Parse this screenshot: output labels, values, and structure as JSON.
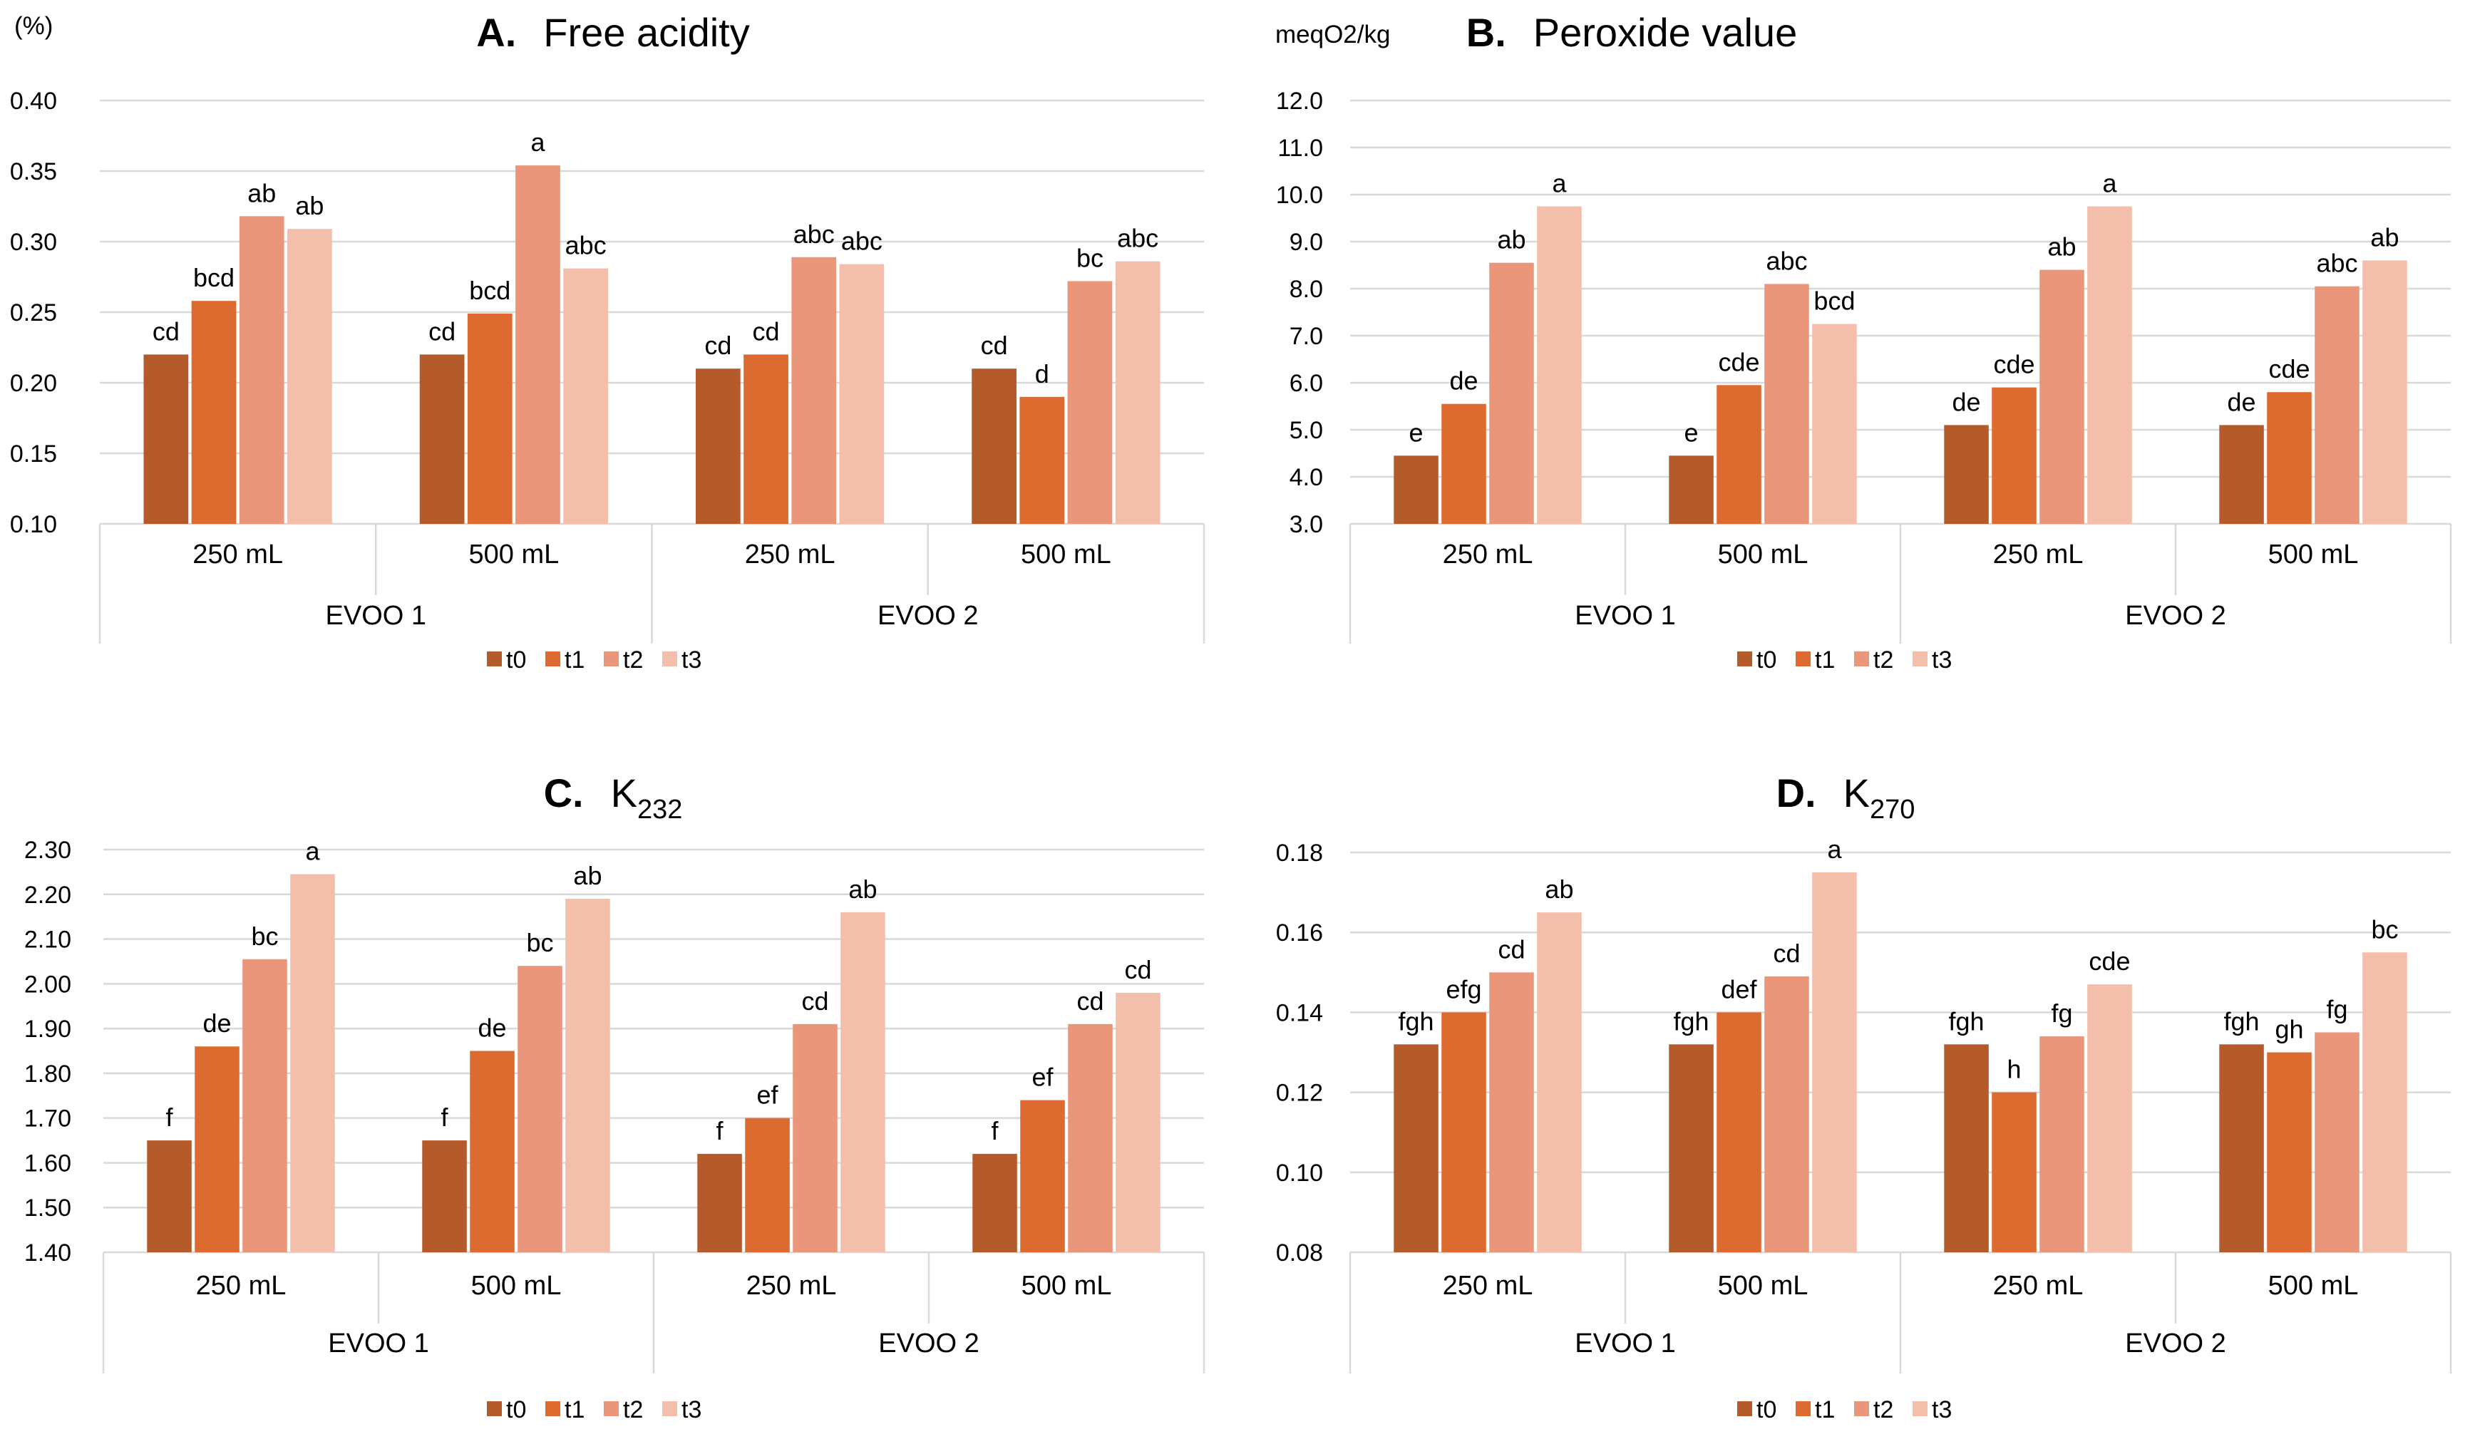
{
  "colors": {
    "t0": "#b55a2a",
    "t1": "#dd6a2e",
    "t2": "#e9967a",
    "t3": "#f3bfaa"
  },
  "chart_data": [
    {
      "type": "bar",
      "panel_label": "A.",
      "title": "Free acidity",
      "title_sub": "",
      "unit_label": "(%)",
      "groups": [
        "EVOO 1",
        "EVOO 2"
      ],
      "categories": [
        "250 mL",
        "500 mL",
        "250 mL",
        "500 mL"
      ],
      "ylim": [
        0.1,
        0.4
      ],
      "yticks": [
        "0.10",
        "0.15",
        "0.20",
        "0.25",
        "0.30",
        "0.35",
        "0.40"
      ],
      "legend_position": "bottom",
      "series": [
        {
          "name": "t0",
          "values": [
            0.22,
            0.22,
            0.21,
            0.21
          ],
          "labels": [
            "cd",
            "cd",
            "cd",
            "cd"
          ]
        },
        {
          "name": "t1",
          "values": [
            0.258,
            0.249,
            0.22,
            0.19
          ],
          "labels": [
            "bcd",
            "bcd",
            "cd",
            "d"
          ]
        },
        {
          "name": "t2",
          "values": [
            0.318,
            0.354,
            0.289,
            0.272
          ],
          "labels": [
            "ab",
            "a",
            "abc",
            "bc"
          ]
        },
        {
          "name": "t3",
          "values": [
            0.309,
            0.281,
            0.284,
            0.286
          ],
          "labels": [
            "ab",
            "abc",
            "abc",
            "abc"
          ]
        }
      ]
    },
    {
      "type": "bar",
      "panel_label": "B.",
      "title": "Peroxide value",
      "title_sub": "",
      "unit_label": "meqO2/kg",
      "groups": [
        "EVOO 1",
        "EVOO 2"
      ],
      "categories": [
        "250 mL",
        "500 mL",
        "250 mL",
        "500 mL"
      ],
      "ylim": [
        3.0,
        12.0
      ],
      "yticks": [
        "3.0",
        "4.0",
        "5.0",
        "6.0",
        "7.0",
        "8.0",
        "9.0",
        "10.0",
        "11.0",
        "12.0"
      ],
      "legend_position": "bottom",
      "series": [
        {
          "name": "t0",
          "values": [
            4.45,
            4.45,
            5.1,
            5.1
          ],
          "labels": [
            "e",
            "e",
            "de",
            "de"
          ]
        },
        {
          "name": "t1",
          "values": [
            5.55,
            5.95,
            5.9,
            5.8
          ],
          "labels": [
            "de",
            "cde",
            "cde",
            "cde"
          ]
        },
        {
          "name": "t2",
          "values": [
            8.55,
            8.1,
            8.4,
            8.05
          ],
          "labels": [
            "ab",
            "abc",
            "ab",
            "abc"
          ]
        },
        {
          "name": "t3",
          "values": [
            9.75,
            7.25,
            9.75,
            8.6
          ],
          "labels": [
            "a",
            "bcd",
            "a",
            "ab"
          ]
        }
      ]
    },
    {
      "type": "bar",
      "panel_label": "C.",
      "title": "K",
      "title_sub": "232",
      "unit_label": "",
      "groups": [
        "EVOO 1",
        "EVOO 2"
      ],
      "categories": [
        "250 mL",
        "500 mL",
        "250 mL",
        "500 mL"
      ],
      "ylim": [
        1.4,
        2.3
      ],
      "yticks": [
        "1.40",
        "1.50",
        "1.60",
        "1.70",
        "1.80",
        "1.90",
        "2.00",
        "2.10",
        "2.20",
        "2.30"
      ],
      "legend_position": "bottom",
      "series": [
        {
          "name": "t0",
          "values": [
            1.65,
            1.65,
            1.62,
            1.62
          ],
          "labels": [
            "f",
            "f",
            "f",
            "f"
          ]
        },
        {
          "name": "t1",
          "values": [
            1.86,
            1.85,
            1.7,
            1.74
          ],
          "labels": [
            "de",
            "de",
            "ef",
            "ef"
          ]
        },
        {
          "name": "t2",
          "values": [
            2.055,
            2.04,
            1.91,
            1.91
          ],
          "labels": [
            "bc",
            "bc",
            "cd",
            "cd"
          ]
        },
        {
          "name": "t3",
          "values": [
            2.245,
            2.19,
            2.16,
            1.98
          ],
          "labels": [
            "a",
            "ab",
            "ab",
            "cd"
          ]
        }
      ]
    },
    {
      "type": "bar",
      "panel_label": "D.",
      "title": "K",
      "title_sub": "270",
      "unit_label": "",
      "groups": [
        "EVOO 1",
        "EVOO 2"
      ],
      "categories": [
        "250 mL",
        "500 mL",
        "250 mL",
        "500 mL"
      ],
      "ylim": [
        0.08,
        0.18
      ],
      "yticks": [
        "0.08",
        "0.10",
        "0.12",
        "0.14",
        "0.16",
        "0.18"
      ],
      "legend_position": "bottom",
      "series": [
        {
          "name": "t0",
          "values": [
            0.132,
            0.132,
            0.132,
            0.132
          ],
          "labels": [
            "fgh",
            "fgh",
            "fgh",
            "fgh"
          ]
        },
        {
          "name": "t1",
          "values": [
            0.14,
            0.14,
            0.12,
            0.13
          ],
          "labels": [
            "efg",
            "def",
            "h",
            "gh"
          ]
        },
        {
          "name": "t2",
          "values": [
            0.15,
            0.149,
            0.134,
            0.135
          ],
          "labels": [
            "cd",
            "cd",
            "fg",
            "fg"
          ]
        },
        {
          "name": "t3",
          "values": [
            0.165,
            0.175,
            0.147,
            0.155
          ],
          "labels": [
            "ab",
            "a",
            "cde",
            "bc"
          ]
        }
      ]
    }
  ]
}
